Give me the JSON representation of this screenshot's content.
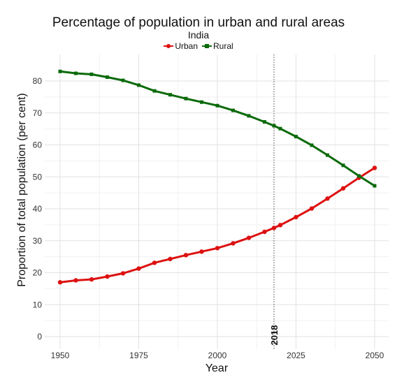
{
  "chart_data": {
    "type": "line",
    "title": "Percentage of population in urban and rural areas",
    "subtitle": "India",
    "xlabel": "Year",
    "ylabel": "Proportion of total population (per cent)",
    "xlim": [
      1950,
      2050
    ],
    "ylim": [
      0,
      85
    ],
    "x_ticks": [
      1950,
      1975,
      2000,
      2025,
      2050
    ],
    "y_ticks": [
      0,
      10,
      20,
      30,
      40,
      50,
      60,
      70,
      80
    ],
    "grid": true,
    "legend_position": "top",
    "x": [
      1950,
      1955,
      1960,
      1965,
      1970,
      1975,
      1980,
      1985,
      1990,
      1995,
      2000,
      2005,
      2010,
      2015,
      2018,
      2020,
      2025,
      2030,
      2035,
      2040,
      2045,
      2050
    ],
    "series": [
      {
        "name": "Urban",
        "color": "#dd1111",
        "marker": "circle",
        "values": [
          17.0,
          17.6,
          17.9,
          18.8,
          19.8,
          21.3,
          23.1,
          24.3,
          25.5,
          26.6,
          27.7,
          29.2,
          30.9,
          32.8,
          34.0,
          34.9,
          37.4,
          40.1,
          43.2,
          46.4,
          49.7,
          52.8
        ]
      },
      {
        "name": "Rural",
        "color": "#0a6a0a",
        "marker": "square",
        "values": [
          83.0,
          82.4,
          82.1,
          81.2,
          80.2,
          78.7,
          76.9,
          75.7,
          74.5,
          73.4,
          72.3,
          70.8,
          69.1,
          67.2,
          66.0,
          65.1,
          62.6,
          59.9,
          56.8,
          53.6,
          50.3,
          47.2
        ]
      }
    ],
    "annotations": [
      {
        "x": 2018,
        "label": "2018"
      }
    ]
  }
}
